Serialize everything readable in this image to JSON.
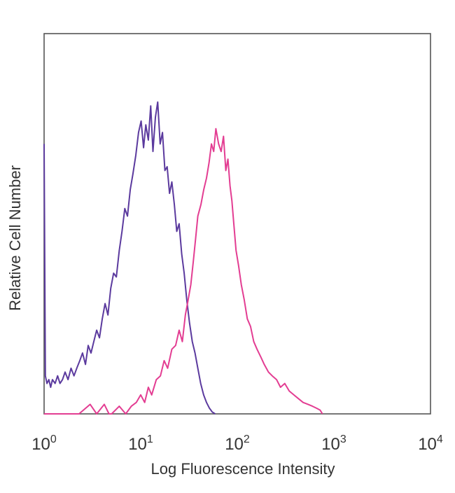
{
  "chart_data": {
    "type": "line",
    "title": "",
    "xlabel": "Log Fluorescence Intensity",
    "ylabel": "Relative Cell Number",
    "x_scale": "log10",
    "xlim": [
      1,
      10000
    ],
    "ylim": [
      0,
      100
    ],
    "grid": false,
    "legend": "none",
    "x_ticks": [
      {
        "base": "10",
        "exp": "0",
        "value": 1
      },
      {
        "base": "10",
        "exp": "1",
        "value": 10
      },
      {
        "base": "10",
        "exp": "2",
        "value": 100
      },
      {
        "base": "10",
        "exp": "3",
        "value": 1000
      },
      {
        "base": "10",
        "exp": "4",
        "value": 10000
      }
    ],
    "series": [
      {
        "color": "#5b3a9e",
        "x": [
          1.0,
          1.03,
          1.07,
          1.12,
          1.17,
          1.22,
          1.3,
          1.38,
          1.46,
          1.55,
          1.65,
          1.77,
          1.9,
          2.04,
          2.18,
          2.34,
          2.5,
          2.68,
          2.86,
          3.06,
          3.27,
          3.5,
          3.74,
          4.0,
          4.28,
          4.58,
          4.9,
          5.24,
          5.6,
          6.0,
          6.4,
          6.85,
          7.3,
          7.8,
          8.3,
          8.9,
          9.5,
          10.1,
          10.7,
          11.3,
          12.0,
          12.7,
          13.4,
          14.2,
          15.0,
          15.9,
          16.8,
          17.8,
          18.8,
          19.9,
          21.0,
          22.3,
          23.6,
          25.0,
          26.6,
          28.2,
          30.0,
          32.0,
          34.2,
          36.5,
          39.0,
          41.8,
          44.8,
          48.0,
          51.5,
          55.0,
          59.0
        ],
        "y": [
          71,
          10,
          8,
          9,
          7,
          9,
          8,
          10,
          8,
          9,
          11,
          9,
          12,
          10,
          12,
          14,
          16,
          13,
          18,
          16,
          19,
          22,
          20,
          25,
          29,
          26,
          33,
          37,
          36,
          43,
          48,
          54,
          52,
          59,
          63,
          68,
          74,
          77,
          70,
          76,
          72,
          81,
          69,
          78,
          82,
          71,
          74,
          64,
          65,
          58,
          61,
          55,
          48,
          50,
          42,
          37,
          30,
          24,
          19,
          16,
          12,
          8,
          5,
          3,
          1.5,
          0.5,
          0
        ]
      },
      {
        "color": "#e33d92",
        "x": [
          1.0,
          2.3,
          3.0,
          3.5,
          4.2,
          4.7,
          5.0,
          6.0,
          7.0,
          8.0,
          9.0,
          10.0,
          11.0,
          12.0,
          13.0,
          14.5,
          16.0,
          17.5,
          19.0,
          21.0,
          23.0,
          25.0,
          27.0,
          29.0,
          31.0,
          33.0,
          35.0,
          37.0,
          39.0,
          42.0,
          45.0,
          48.0,
          51.0,
          54.0,
          57.0,
          60.0,
          64.0,
          68.0,
          72.0,
          76.0,
          80.0,
          84.0,
          88.0,
          92.0,
          97.0,
          103.0,
          110.0,
          118.0,
          127.0,
          137.0,
          148.0,
          160.0,
          175.0,
          190.0,
          210.0,
          230.0,
          255.0,
          280.0,
          310.0,
          345.0,
          385.0,
          430.0,
          480.0,
          540.0,
          600.0,
          660.0,
          720.0,
          760.0
        ],
        "y": [
          0,
          0,
          2.5,
          0,
          2.5,
          0,
          0,
          2,
          0,
          2,
          3,
          5,
          3,
          7,
          5,
          9,
          10,
          14,
          12,
          17,
          18,
          22,
          19,
          26,
          30,
          34,
          40,
          46,
          52,
          55,
          59,
          62,
          66,
          71,
          69,
          75,
          71,
          69,
          73,
          64,
          67,
          60,
          56,
          50,
          43,
          39,
          34,
          30,
          25,
          23,
          19,
          17,
          15,
          13,
          11,
          10,
          9,
          7,
          8,
          6,
          5,
          4,
          3,
          2.5,
          2,
          1.5,
          1,
          0
        ]
      }
    ]
  }
}
